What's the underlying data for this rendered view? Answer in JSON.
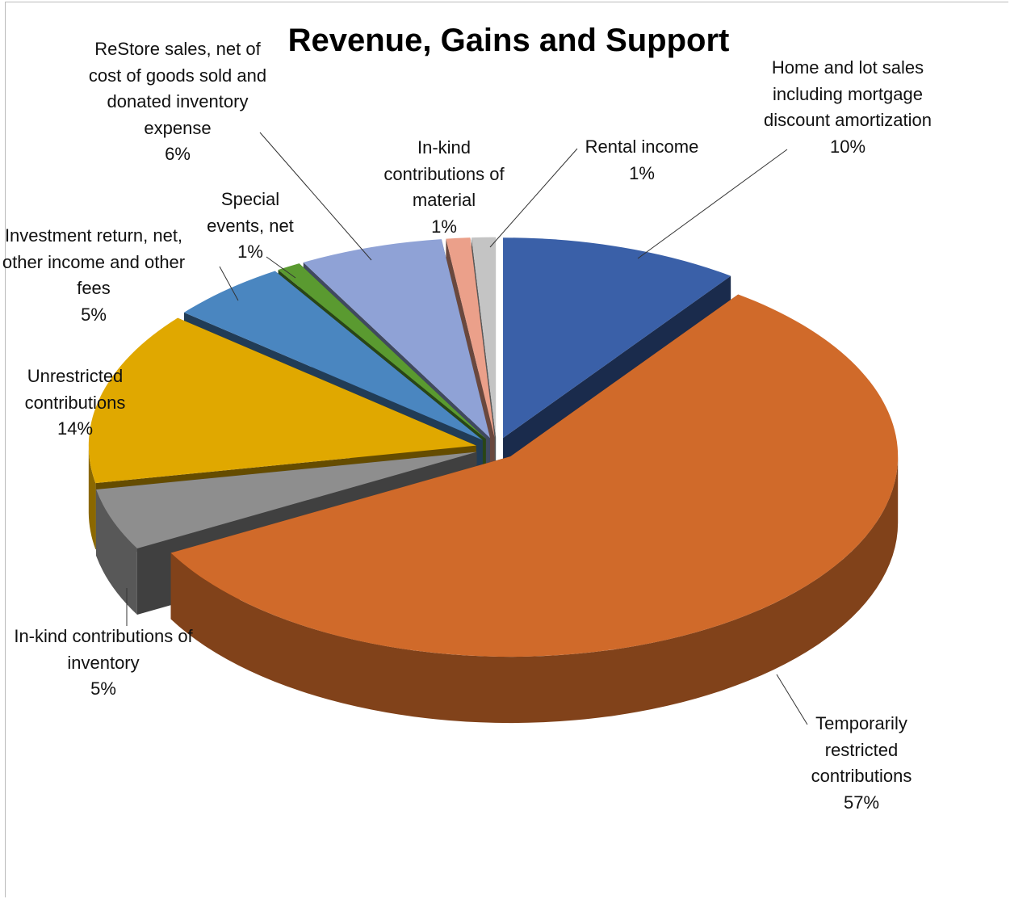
{
  "chart_data": {
    "type": "pie3d",
    "title": "Revenue, Gains and Support",
    "categories": [
      "Home and lot sales including mortgage discount amortization",
      "Temporarily restricted contributions",
      "In-kind contributions of inventory",
      "Unrestricted contributions",
      "Investment return, net, other income and other fees",
      "Special events, net",
      "ReStore sales, net of cost of goods sold and donated inventory expense",
      "In-kind contributions of material",
      "Rental income"
    ],
    "values": [
      10,
      57,
      5,
      14,
      5,
      1,
      6,
      1,
      1
    ],
    "value_labels": [
      "10%",
      "57%",
      "5%",
      "14%",
      "5%",
      "1%",
      "6%",
      "1%",
      "1%"
    ],
    "colors": [
      "#3a60a8",
      "#d06a2a",
      "#8e8e8e",
      "#e0a800",
      "#4a86c0",
      "#5a9a30",
      "#8fa2d6",
      "#eba08a",
      "#c4c4c4"
    ]
  }
}
